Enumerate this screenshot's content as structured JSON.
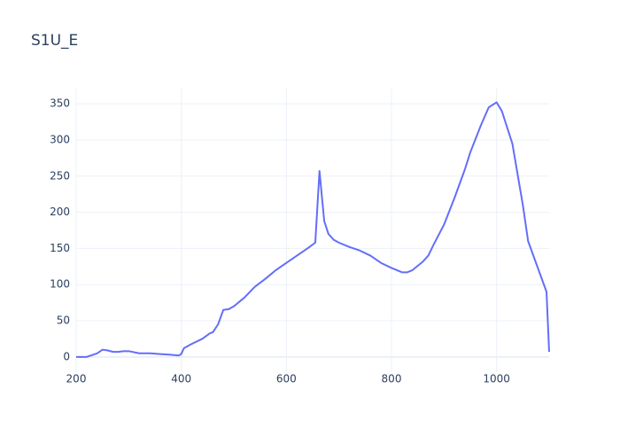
{
  "chart_data": {
    "type": "line",
    "title": "S1U_E",
    "x": [
      200,
      220,
      240,
      250,
      260,
      270,
      280,
      290,
      300,
      320,
      340,
      360,
      380,
      395,
      400,
      405,
      420,
      440,
      455,
      460,
      470,
      480,
      490,
      500,
      520,
      540,
      560,
      580,
      600,
      620,
      640,
      655,
      663,
      672,
      680,
      690,
      700,
      720,
      740,
      760,
      780,
      800,
      820,
      830,
      840,
      860,
      870,
      880,
      900,
      920,
      940,
      950,
      970,
      985,
      1000,
      1010,
      1030,
      1050,
      1060,
      1080,
      1095,
      1100
    ],
    "series": [
      {
        "color": "#636efa",
        "values": [
          0,
          0,
          5,
          10,
          9,
          7,
          7,
          8,
          8,
          5,
          5,
          4,
          3,
          2,
          4,
          12,
          18,
          25,
          33,
          34,
          45,
          65,
          66,
          70,
          82,
          97,
          108,
          120,
          130,
          140,
          150,
          158,
          257,
          188,
          170,
          162,
          158,
          152,
          147,
          140,
          130,
          123,
          117,
          117,
          120,
          132,
          140,
          155,
          183,
          220,
          260,
          283,
          320,
          345,
          352,
          340,
          295,
          210,
          160,
          120,
          90,
          7
        ]
      }
    ],
    "xlim": [
      200,
      1100
    ],
    "xticks": [
      200,
      400,
      600,
      800,
      1000
    ],
    "ylim": [
      -21,
      371
    ],
    "yticks": [
      0,
      50,
      100,
      150,
      200,
      250,
      300,
      350
    ],
    "grid": true
  }
}
